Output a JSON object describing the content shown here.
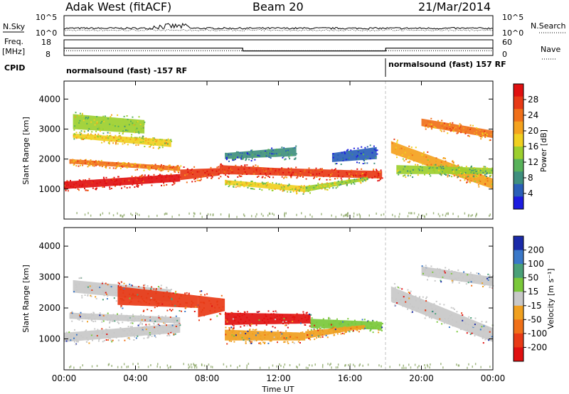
{
  "header": {
    "radar_title": "Adak West (fitACF)",
    "beam": "Beam 20",
    "date": "21/Mar/2014"
  },
  "side_labels": {
    "nsky": "N.Sky",
    "nsearch": "N.Search",
    "freq_line1": "Freq.",
    "freq_line2": "[MHz]",
    "nave": "Nave",
    "cpid": "CPID"
  },
  "chart_data": [
    {
      "type": "line",
      "name": "noise",
      "y_tick_labels_left": [
        "10^5",
        "10^0"
      ],
      "y_tick_labels_right": [
        "10^5",
        "10^0"
      ],
      "series": [
        {
          "name": "N.Sky",
          "style": "solid"
        },
        {
          "name": "N.Search",
          "style": "dotted"
        }
      ]
    },
    {
      "type": "line",
      "name": "frequency",
      "ylim_left": [
        8,
        18
      ],
      "ylim_right": [
        0,
        60
      ],
      "y_tick_labels_left": [
        "18",
        "8"
      ],
      "y_tick_labels_right": [
        "60",
        "0"
      ],
      "freq_segments": [
        {
          "x": [
            0.0,
            10.0
          ],
          "value": 12.7
        },
        {
          "x": [
            10.0,
            18.0
          ],
          "value": 10.9
        },
        {
          "x": [
            18.0,
            24.0
          ],
          "value": 12.7
        }
      ],
      "nave_value": 18
    },
    {
      "type": "table",
      "name": "cpid",
      "entries": [
        {
          "start": 0.0,
          "end": 18.0,
          "text": "normalsound (fast) -157 RF"
        },
        {
          "start": 18.0,
          "end": 24.0,
          "text": "normalsound (fast) 157 RF"
        }
      ]
    },
    {
      "type": "heatmap",
      "name": "power",
      "ylabel": "Slant Range [km]",
      "ylim": [
        0,
        4600
      ],
      "y_ticks": [
        1000,
        2000,
        3000,
        4000
      ],
      "xlim": [
        0,
        24
      ],
      "colorbar": {
        "label": "Power [dB]",
        "ticks": [
          "4",
          "8",
          "12",
          "16",
          "20",
          "24",
          "28"
        ],
        "colors": [
          "#1c1ce0",
          "#2a5fb8",
          "#3f8f7e",
          "#58b25a",
          "#9ccf2e",
          "#f0d020",
          "#f4a21e",
          "#f0701a",
          "#e83a16",
          "#e01010"
        ]
      },
      "bands": [
        {
          "x": [
            0.0,
            6.5
          ],
          "y_low": [
            1000,
            1250
          ],
          "y_high": [
            1250,
            1500
          ],
          "level": 0.95
        },
        {
          "x": [
            0.3,
            6.5
          ],
          "y_low": [
            1850,
            1600
          ],
          "y_high": [
            2000,
            1750
          ],
          "level": 0.7
        },
        {
          "x": [
            0.5,
            6.0
          ],
          "y_low": [
            2700,
            2400
          ],
          "y_high": [
            2850,
            2650
          ],
          "level": 0.55
        },
        {
          "x": [
            0.5,
            4.5
          ],
          "y_low": [
            3000,
            2850
          ],
          "y_high": [
            3500,
            3300
          ],
          "level": 0.45
        },
        {
          "x": [
            6.5,
            8.7
          ],
          "y_low": [
            1300,
            1450
          ],
          "y_high": [
            1650,
            1700
          ],
          "level": 0.85
        },
        {
          "x": [
            8.7,
            12.0
          ],
          "y_low": [
            1500,
            1450
          ],
          "y_high": [
            1800,
            1700
          ],
          "level": 0.85
        },
        {
          "x": [
            12.0,
            17.8
          ],
          "y_low": [
            1450,
            1350
          ],
          "y_high": [
            1700,
            1600
          ],
          "level": 0.85
        },
        {
          "x": [
            9.0,
            13.5
          ],
          "y_low": [
            1150,
            900
          ],
          "y_high": [
            1300,
            1100
          ],
          "level": 0.5
        },
        {
          "x": [
            13.5,
            17.0
          ],
          "y_low": [
            900,
            1300
          ],
          "y_high": [
            1100,
            1400
          ],
          "level": 0.45
        },
        {
          "x": [
            9.0,
            13.0
          ],
          "y_low": [
            2000,
            2100
          ],
          "y_high": [
            2200,
            2400
          ],
          "level": 0.2
        },
        {
          "x": [
            15.0,
            17.5
          ],
          "y_low": [
            1900,
            2000
          ],
          "y_high": [
            2200,
            2400
          ],
          "level": 0.15
        },
        {
          "x": [
            18.3,
            24.0
          ],
          "y_low": [
            2200,
            1000
          ],
          "y_high": [
            2600,
            1350
          ],
          "level": 0.65
        },
        {
          "x": [
            18.6,
            24.0
          ],
          "y_low": [
            1500,
            1500
          ],
          "y_high": [
            1800,
            1700
          ],
          "level": 0.4
        },
        {
          "x": [
            20.0,
            24.0
          ],
          "y_low": [
            3100,
            2700
          ],
          "y_high": [
            3350,
            2950
          ],
          "level": 0.7
        }
      ]
    },
    {
      "type": "heatmap",
      "name": "velocity",
      "ylabel": "Slant Range [km]",
      "xlabel": "Time UT",
      "ylim": [
        0,
        4600
      ],
      "y_ticks": [
        1000,
        2000,
        3000,
        4000
      ],
      "xlim": [
        0,
        24
      ],
      "x_tick_labels": [
        "00:00",
        "04:00",
        "08:00",
        "12:00",
        "16:00",
        "20:00",
        "00:00"
      ],
      "colorbar": {
        "label": "Velocity [m s⁻¹]",
        "ticks": [
          "200",
          "100",
          "50",
          "15",
          "-15",
          "-50",
          "-100",
          "-200"
        ],
        "colors": [
          "#1a2aa8",
          "#3a78c8",
          "#4aa078",
          "#7ac83a",
          "#c8c8c8",
          "#f0a020",
          "#f07018",
          "#e83a16",
          "#e01010"
        ]
      },
      "bands": [
        {
          "x": [
            0.0,
            6.5
          ],
          "y_low": [
            900,
            1200
          ],
          "y_high": [
            1200,
            1500
          ],
          "color": "#c8c8c8"
        },
        {
          "x": [
            0.3,
            6.5
          ],
          "y_low": [
            1650,
            1500
          ],
          "y_high": [
            1850,
            1700
          ],
          "color": "#c8c8c8"
        },
        {
          "x": [
            0.5,
            6.0
          ],
          "y_low": [
            2500,
            2200
          ],
          "y_high": [
            2900,
            2600
          ],
          "color": "#c8c8c8"
        },
        {
          "x": [
            3.0,
            7.5
          ],
          "y_low": [
            2100,
            2000
          ],
          "y_high": [
            2700,
            2400
          ],
          "color": "#e83a16"
        },
        {
          "x": [
            7.5,
            9.0
          ],
          "y_low": [
            1700,
            1900
          ],
          "y_high": [
            2400,
            2300
          ],
          "color": "#e83a16"
        },
        {
          "x": [
            9.0,
            13.8
          ],
          "y_low": [
            1450,
            1500
          ],
          "y_high": [
            1850,
            1800
          ],
          "color": "#e01010"
        },
        {
          "x": [
            13.8,
            17.8
          ],
          "y_low": [
            1350,
            1300
          ],
          "y_high": [
            1650,
            1550
          ],
          "color": "#7ac83a"
        },
        {
          "x": [
            9.0,
            13.5
          ],
          "y_low": [
            950,
            950
          ],
          "y_high": [
            1300,
            1200
          ],
          "color": "#f0a020"
        },
        {
          "x": [
            13.5,
            16.8
          ],
          "y_low": [
            1000,
            1350
          ],
          "y_high": [
            1250,
            1450
          ],
          "color": "#f0a020"
        },
        {
          "x": [
            18.3,
            24.0
          ],
          "y_low": [
            2200,
            900
          ],
          "y_high": [
            2700,
            1350
          ],
          "color": "#c8c8c8"
        },
        {
          "x": [
            20.0,
            24.0
          ],
          "y_low": [
            3050,
            2700
          ],
          "y_high": [
            3350,
            3000
          ],
          "color": "#c8c8c8"
        }
      ]
    }
  ]
}
